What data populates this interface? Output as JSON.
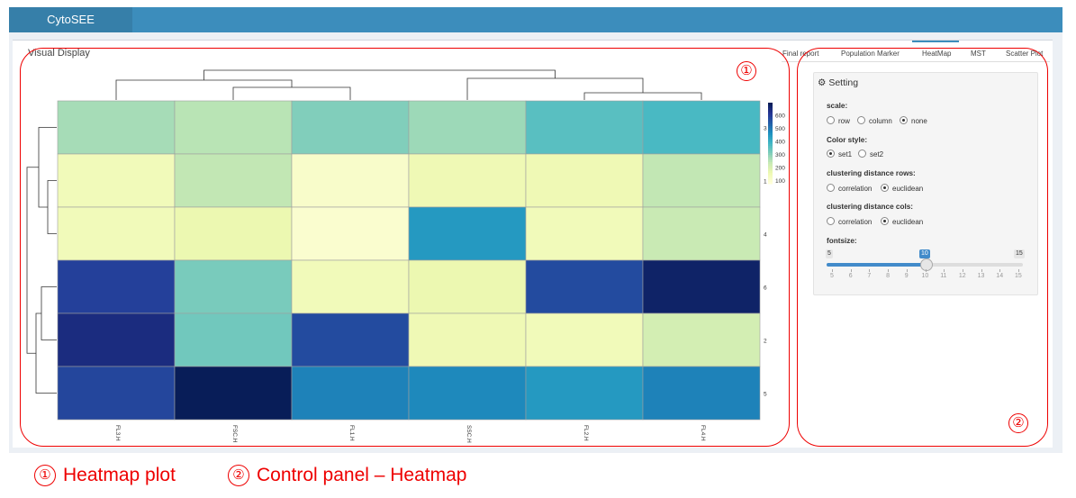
{
  "app": {
    "title": "CytoSEE"
  },
  "visual_display": {
    "title": "Visual Display"
  },
  "tabs": [
    {
      "label": "Final report",
      "active": false
    },
    {
      "label": "Population Marker",
      "active": false
    },
    {
      "label": "HeatMap",
      "active": true
    },
    {
      "label": "MST",
      "active": false
    },
    {
      "label": "Scatter Plot",
      "active": false
    }
  ],
  "settings": {
    "title": "Setting",
    "icon": "gear-icon",
    "scale": {
      "label": "scale:",
      "options": [
        "row",
        "column",
        "none"
      ],
      "selected": "none"
    },
    "color_style": {
      "label": "Color style:",
      "options": [
        "set1",
        "set2"
      ],
      "selected": "set1"
    },
    "clustering_rows": {
      "label": "clustering distance rows:",
      "options": [
        "correlation",
        "euclidean"
      ],
      "selected": "euclidean"
    },
    "clustering_cols": {
      "label": "clustering distance cols:",
      "options": [
        "correlation",
        "euclidean"
      ],
      "selected": "euclidean"
    },
    "fontsize": {
      "label": "fontsize:",
      "min": 5,
      "max": 15,
      "value": 10,
      "min_label": "5",
      "max_label": "15",
      "value_label": "10",
      "ticks": [
        "5",
        "6",
        "7",
        "8",
        "9",
        "10",
        "11",
        "12",
        "13",
        "14",
        "15"
      ]
    }
  },
  "annotations": {
    "marker1": "①",
    "marker2": "②",
    "caption1": "Heatmap plot",
    "caption2": "Control panel – Heatmap"
  },
  "chart_data": {
    "type": "heatmap",
    "columns": [
      "FL3.H",
      "FSC.H",
      "FL1.H",
      "SSC.H",
      "FL2.H",
      "FL4.H"
    ],
    "rows": [
      "3",
      "1",
      "4",
      "6",
      "2",
      "5"
    ],
    "values": [
      [
        270,
        250,
        310,
        280,
        360,
        380
      ],
      [
        140,
        240,
        110,
        150,
        150,
        240
      ],
      [
        140,
        160,
        100,
        450,
        140,
        230
      ],
      [
        600,
        320,
        140,
        160,
        580,
        680
      ],
      [
        650,
        330,
        580,
        150,
        140,
        210
      ],
      [
        590,
        700,
        490,
        480,
        450,
        490
      ]
    ],
    "colorbar": {
      "ticks": [
        "100",
        "200",
        "300",
        "400",
        "500",
        "600"
      ],
      "range": [
        80,
        700
      ]
    },
    "colors": [
      "#ffffd9",
      "#edf8b1",
      "#c7e9b4",
      "#7fcdbb",
      "#41b6c4",
      "#1d91c0",
      "#225ea8",
      "#253494",
      "#081d58"
    ],
    "column_dendrogram": true,
    "row_dendrogram": true
  }
}
